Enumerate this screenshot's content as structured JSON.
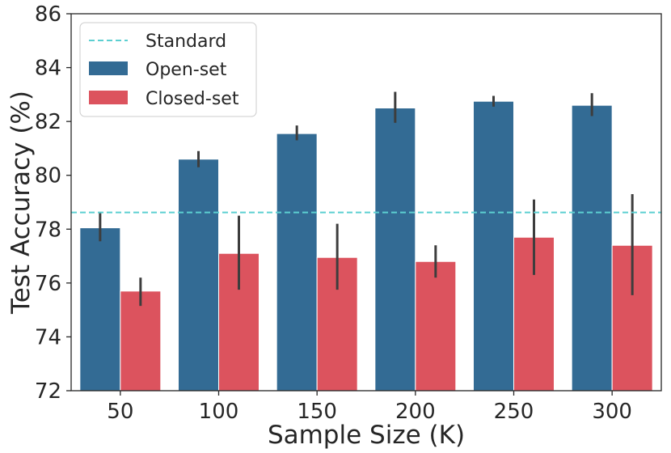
{
  "chart_data": {
    "type": "bar",
    "title": "",
    "xlabel": "Sample Size (K)",
    "ylabel": "Test Accuracy (%)",
    "categories": [
      "50",
      "100",
      "150",
      "200",
      "250",
      "300"
    ],
    "ylim": [
      72,
      86
    ],
    "yticks": [
      "72",
      "74",
      "76",
      "78",
      "80",
      "82",
      "84",
      "86"
    ],
    "series": [
      {
        "name": "Open-set",
        "color": "#336b94",
        "values": [
          78.05,
          80.6,
          81.55,
          82.5,
          82.75,
          82.6
        ],
        "err_low": [
          77.55,
          80.3,
          81.3,
          81.95,
          82.55,
          82.2
        ],
        "err_high": [
          78.6,
          80.9,
          81.85,
          83.1,
          82.95,
          83.05
        ]
      },
      {
        "name": "Closed-set",
        "color": "#dc535e",
        "values": [
          75.7,
          77.1,
          76.95,
          76.8,
          77.7,
          77.4
        ],
        "err_low": [
          75.15,
          75.75,
          75.75,
          76.2,
          76.3,
          75.55
        ],
        "err_high": [
          76.2,
          78.5,
          78.2,
          77.4,
          79.1,
          79.3
        ]
      }
    ],
    "reference_line": {
      "name": "Standard",
      "value": 78.62,
      "color": "#5ccfd1",
      "style": "dashed"
    },
    "legend": {
      "position": "top-left",
      "entries": [
        "Standard",
        "Open-set",
        "Closed-set"
      ]
    },
    "grid": false
  }
}
